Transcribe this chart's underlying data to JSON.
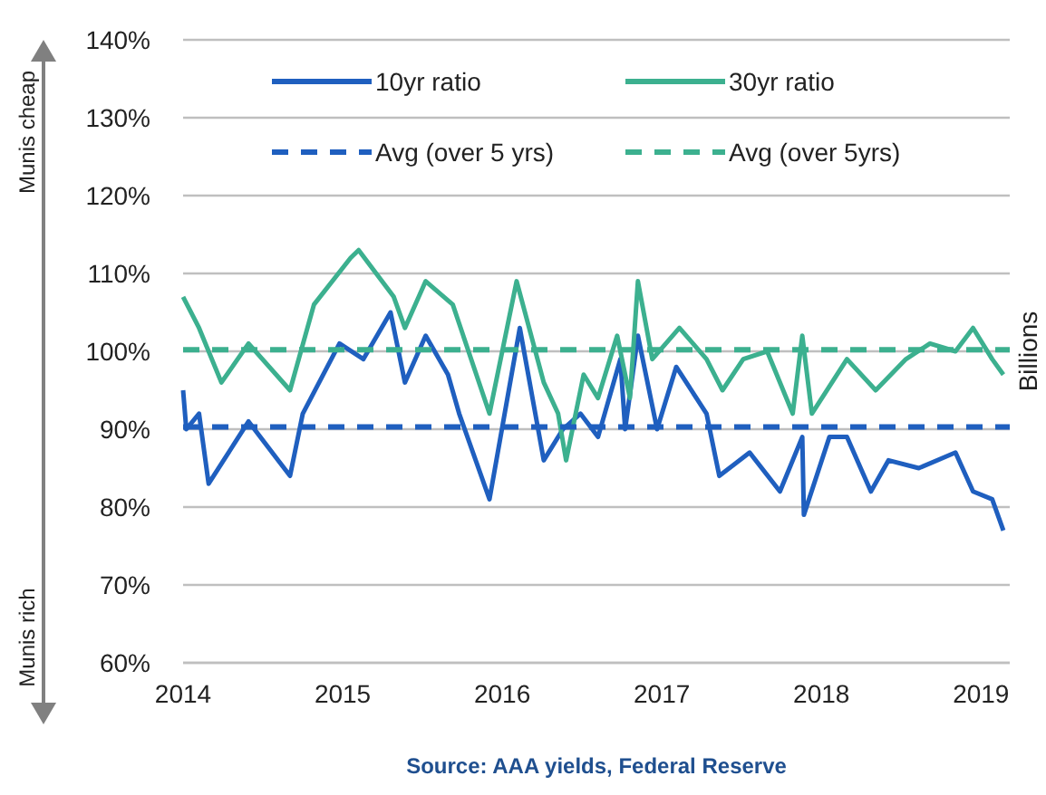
{
  "chart_data": {
    "type": "line",
    "xlabel": null,
    "y2label": "Billions",
    "annotations": [
      "Munis cheap",
      "Munis rich",
      "Source: AAA yields, Federal Reserve"
    ],
    "xlim": [
      2014,
      2019.18
    ],
    "xticks": [
      2014,
      2015,
      2016,
      2017,
      2018,
      2019
    ],
    "ylim": [
      60,
      140
    ],
    "yticks": [
      {
        "value": 60,
        "label": "60%"
      },
      {
        "value": 70,
        "label": "70%"
      },
      {
        "value": 80,
        "label": "80%"
      },
      {
        "value": 90,
        "label": "90%"
      },
      {
        "value": 100,
        "label": "100%"
      },
      {
        "value": 110,
        "label": "110%"
      },
      {
        "value": 120,
        "label": "120%"
      },
      {
        "value": 130,
        "label": "130%"
      },
      {
        "value": 140,
        "label": "140%"
      }
    ],
    "grid": "y",
    "legend": "top",
    "line_style": "solid",
    "series": [
      {
        "name": "10yr ratio",
        "color": "#1f5fbf",
        "x": [
          2014,
          2014.02,
          2014.1,
          2014.16,
          2014.41,
          2014.67,
          2014.75,
          2014.98,
          2015.13,
          2015.3,
          2015.39,
          2015.52,
          2015.66,
          2015.73,
          2015.92,
          2016.11,
          2016.26,
          2016.38,
          2016.49,
          2016.6,
          2016.74,
          2016.77,
          2016.85,
          2016.97,
          2017.09,
          2017.28,
          2017.36,
          2017.55,
          2017.74,
          2017.88,
          2017.89,
          2018.05,
          2018.16,
          2018.31,
          2018.42,
          2018.61,
          2018.84,
          2018.95,
          2019.07,
          2019.14
        ],
        "values": [
          95,
          90,
          92,
          83,
          91,
          84,
          92,
          101,
          99,
          105,
          96,
          102,
          97,
          92,
          81,
          103,
          86,
          90,
          92,
          89,
          99,
          90,
          102,
          90,
          98,
          92,
          84,
          87,
          82,
          89,
          79,
          89,
          89,
          82,
          86,
          85,
          87,
          82,
          81,
          77
        ]
      },
      {
        "name": "30yr ratio",
        "color": "#3cb08f",
        "x": [
          2014,
          2014.1,
          2014.24,
          2014.41,
          2014.67,
          2014.82,
          2015.05,
          2015.1,
          2015.32,
          2015.39,
          2015.52,
          2015.69,
          2015.92,
          2016.09,
          2016.26,
          2016.35,
          2016.4,
          2016.51,
          2016.6,
          2016.72,
          2016.8,
          2016.85,
          2016.94,
          2017.11,
          2017.28,
          2017.38,
          2017.51,
          2017.66,
          2017.82,
          2017.88,
          2017.94,
          2018.16,
          2018.34,
          2018.53,
          2018.68,
          2018.84,
          2018.95,
          2019.07,
          2019.14
        ],
        "values": [
          107,
          103,
          96,
          101,
          95,
          106,
          112,
          113,
          107,
          103,
          109,
          106,
          92,
          109,
          96,
          92,
          86,
          97,
          94,
          102,
          94,
          109,
          99,
          103,
          99,
          95,
          99,
          100,
          92,
          102,
          92,
          99,
          95,
          99,
          101,
          100,
          103,
          99,
          97
        ]
      },
      {
        "name": "Avg (over 5 yrs)",
        "color": "#1f5fbf",
        "line_style": "dashed",
        "x": [
          2014,
          2019.18
        ],
        "values": [
          90.3,
          90.3
        ]
      },
      {
        "name": "Avg (over 5yrs)",
        "color": "#3cb08f",
        "line_style": "dashed",
        "x": [
          2014,
          2019.18
        ],
        "values": [
          100.2,
          100.2
        ]
      }
    ]
  }
}
